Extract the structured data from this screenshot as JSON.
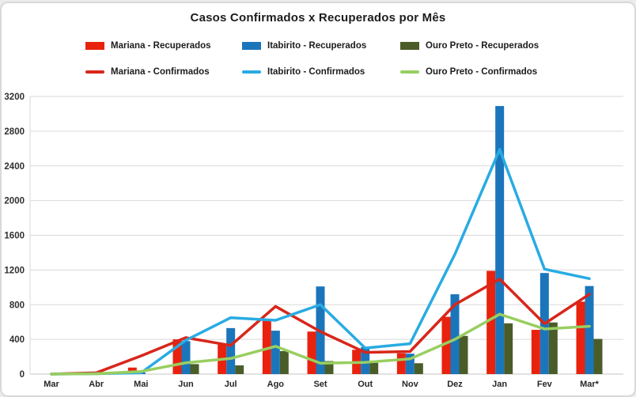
{
  "window": {
    "background": "#ffffff",
    "frame_border": "#d9d9d9"
  },
  "chart_data": {
    "type": "bar",
    "subtype": "grouped-bars-with-line-overlay",
    "title": "Casos Confirmados x Recuperados por Mês",
    "categories": [
      "Mar",
      "Abr",
      "Mai",
      "Jun",
      "Jul",
      "Ago",
      "Set",
      "Out",
      "Nov",
      "Dez",
      "Jan",
      "Fev",
      "Mar*"
    ],
    "y_ticks": [
      0,
      400,
      800,
      1200,
      1600,
      2000,
      2400,
      2800,
      3200
    ],
    "ylim": [
      0,
      3200
    ],
    "grid": "horizontal",
    "legend_position": "top-two-rows",
    "colors": {
      "grid": "#d9d9d9",
      "axis_text": "#303030",
      "mariana_bar": "#e8220e",
      "itabirito_bar": "#1b75bb",
      "ouro_preto_bar": "#4a5d28",
      "mariana_line": "#d8261a",
      "itabirito_line": "#29abe2",
      "ouro_preto_line": "#99ce60"
    },
    "bar_series": [
      {
        "name": "Mariana - Recuperados",
        "color": "#e8220e",
        "values": [
          0,
          0,
          75,
          400,
          340,
          615,
          490,
          280,
          240,
          660,
          1190,
          510,
          835
        ]
      },
      {
        "name": "Itabirito - Recuperados",
        "color": "#1b75bb",
        "values": [
          0,
          0,
          20,
          380,
          530,
          500,
          1010,
          310,
          235,
          920,
          3090,
          1165,
          1015
        ]
      },
      {
        "name": "Ouro Preto - Recuperados",
        "color": "#4a5d28",
        "values": [
          0,
          0,
          0,
          115,
          100,
          265,
          150,
          130,
          125,
          440,
          585,
          595,
          405
        ]
      }
    ],
    "line_series": [
      {
        "name": "Mariana - Confirmados",
        "color": "#d8261a",
        "values": [
          0,
          15,
          210,
          420,
          330,
          780,
          490,
          250,
          260,
          800,
          1095,
          580,
          920
        ]
      },
      {
        "name": "Itabirito - Confirmados",
        "color": "#29abe2",
        "values": [
          0,
          5,
          15,
          390,
          650,
          620,
          800,
          300,
          350,
          1380,
          2590,
          1210,
          1100
        ]
      },
      {
        "name": "Ouro Preto - Confirmados",
        "color": "#99ce60",
        "values": [
          0,
          5,
          30,
          130,
          180,
          320,
          125,
          135,
          175,
          400,
          690,
          520,
          550
        ]
      }
    ]
  }
}
